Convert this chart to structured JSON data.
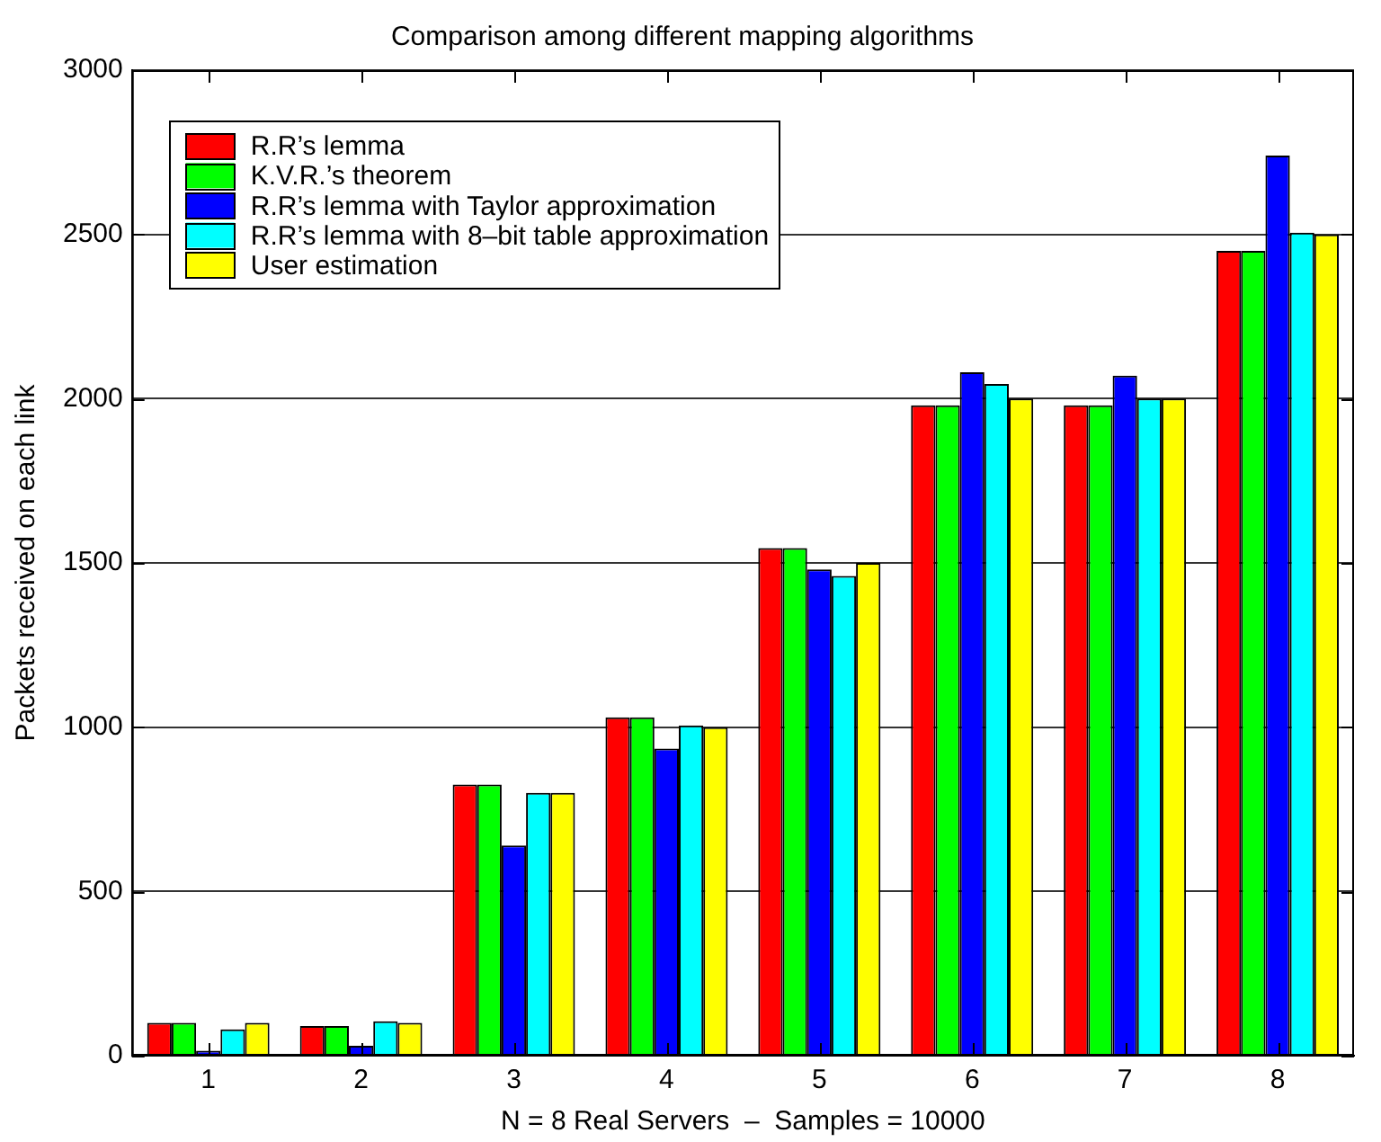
{
  "chart_data": {
    "type": "bar",
    "title": "Comparison among different mapping algorithms",
    "xlabel": "N = 8 Real Servers  –  Samples = 10000",
    "ylabel": "Packets received on each link",
    "categories": [
      "1",
      "2",
      "3",
      "4",
      "5",
      "6",
      "7",
      "8"
    ],
    "series": [
      {
        "name": "R.R’s lemma",
        "color": "#ff0000",
        "values": [
          100,
          90,
          825,
          1030,
          1545,
          1980,
          1980,
          2450
        ]
      },
      {
        "name": "K.V.R.’s theorem",
        "color": "#00ff00",
        "values": [
          100,
          90,
          825,
          1030,
          1545,
          1980,
          1980,
          2450
        ]
      },
      {
        "name": "R.R’s lemma with Taylor approximation",
        "color": "#0000ff",
        "values": [
          15,
          30,
          640,
          935,
          1480,
          2080,
          2070,
          2740
        ]
      },
      {
        "name": "R.R’s lemma with 8–bit table approximation",
        "color": "#00ffff",
        "values": [
          80,
          105,
          800,
          1005,
          1460,
          2045,
          2000,
          2505
        ]
      },
      {
        "name": "User estimation",
        "color": "#ffff00",
        "values": [
          100,
          100,
          800,
          1000,
          1500,
          2000,
          2000,
          2500
        ]
      }
    ],
    "ylim": [
      0,
      3000
    ],
    "yticks": [
      0,
      500,
      1000,
      1500,
      2000,
      2500,
      3000
    ],
    "grid": "y",
    "legend": "top left"
  }
}
